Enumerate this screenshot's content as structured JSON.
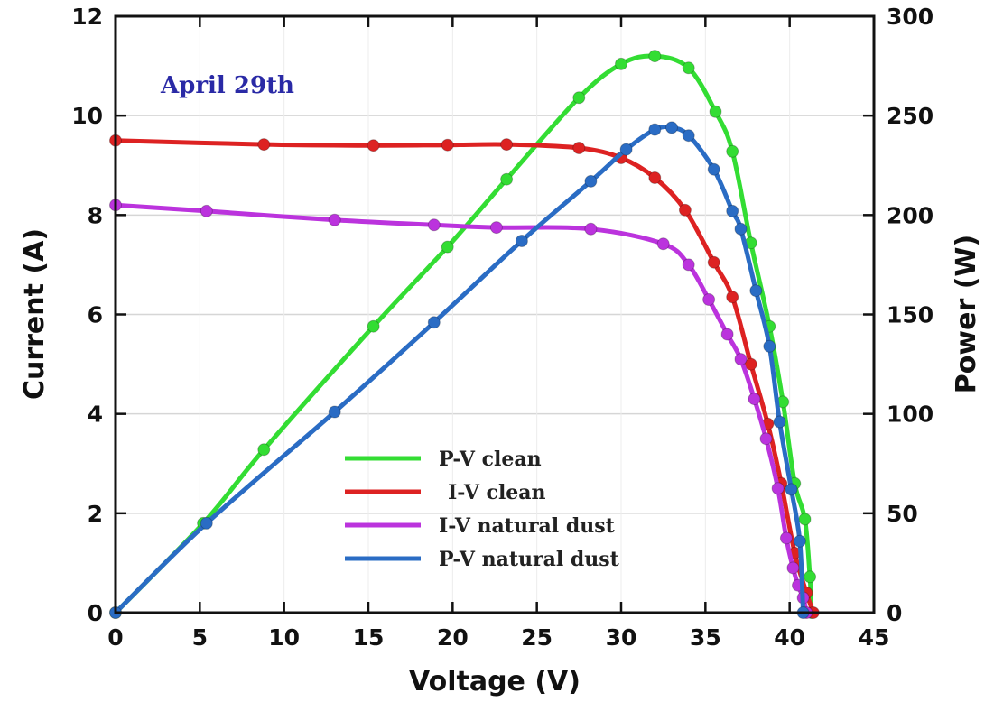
{
  "chart_data": {
    "type": "line",
    "xlabel": "Voltage (V)",
    "ylabel_left": "Current (A)",
    "ylabel_right": "Power (W)",
    "xlim": [
      0,
      45
    ],
    "ylim_left": [
      0,
      12
    ],
    "ylim_right": [
      0,
      300
    ],
    "xticks": [
      "0",
      "5",
      "10",
      "15",
      "20",
      "25",
      "30",
      "35",
      "40",
      "45"
    ],
    "yticks_left": [
      "0",
      "2",
      "4",
      "6",
      "8",
      "10",
      "12"
    ],
    "yticks_right": [
      "0",
      "50",
      "100",
      "150",
      "200",
      "250",
      "300"
    ],
    "grid": true,
    "legend_position": "bottom-center",
    "annotation": {
      "text": "April 29th",
      "color": "#2a2aa6"
    },
    "series": [
      {
        "name": "P-V clean",
        "axis": "right",
        "color": "#33dd33",
        "x": [
          0,
          5.2,
          8.8,
          15.3,
          19.7,
          23.2,
          27.5,
          30,
          32,
          34,
          35.6,
          36.6,
          37.7,
          38.8,
          39.6,
          40.3,
          40.9,
          41.2,
          41.3
        ],
        "y": [
          0,
          45,
          82,
          144,
          184,
          218,
          259,
          276,
          280,
          274,
          252,
          232,
          186,
          144,
          106,
          65,
          47,
          18,
          0
        ]
      },
      {
        "name": "I-V clean",
        "axis": "left",
        "color": "#dd2222",
        "x": [
          0,
          8.8,
          15.3,
          19.7,
          23.2,
          27.5,
          30,
          32,
          33.8,
          35.5,
          36.6,
          37.7,
          38.7,
          39.5,
          40.3,
          41,
          41.4
        ],
        "y": [
          9.5,
          9.42,
          9.4,
          9.41,
          9.42,
          9.35,
          9.15,
          8.75,
          8.1,
          7.05,
          6.35,
          5.0,
          3.8,
          2.6,
          1.2,
          0.4,
          0
        ]
      },
      {
        "name": "I-V natural dust",
        "axis": "left",
        "color": "#bb33dd",
        "x": [
          0,
          5.4,
          13,
          18.9,
          22.6,
          28.2,
          32.5,
          34,
          35.2,
          36.3,
          37.1,
          37.9,
          38.6,
          39.3,
          39.8,
          40.2,
          40.5,
          40.8,
          41
        ],
        "y": [
          8.2,
          8.08,
          7.9,
          7.8,
          7.75,
          7.72,
          7.42,
          7.0,
          6.3,
          5.6,
          5.1,
          4.3,
          3.5,
          2.5,
          1.5,
          0.9,
          0.55,
          0.3,
          0
        ]
      },
      {
        "name": "P-V natural dust",
        "axis": "right",
        "color": "#2a6cc4",
        "x": [
          0,
          5.4,
          13,
          18.9,
          24.1,
          28.2,
          30.3,
          32,
          33,
          34,
          35.5,
          36.6,
          37.1,
          38,
          38.8,
          39.4,
          40.1,
          40.6,
          40.8
        ],
        "y": [
          0,
          45,
          101,
          146,
          187,
          217,
          233,
          243,
          244,
          240,
          223,
          202,
          193,
          162,
          134,
          96,
          62,
          36,
          0
        ]
      }
    ]
  }
}
